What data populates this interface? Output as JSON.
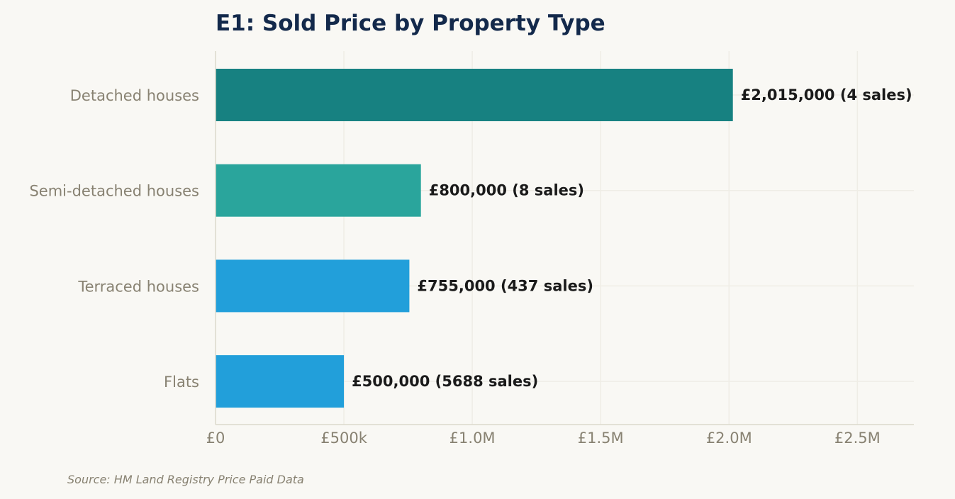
{
  "chart_data": {
    "type": "bar",
    "orientation": "horizontal",
    "title": "E1: Sold Price by Property Type",
    "xlabel": "",
    "ylabel": "",
    "categories": [
      "Detached houses",
      "Semi-detached houses",
      "Terraced houses",
      "Flats"
    ],
    "values": [
      2015000,
      800000,
      755000,
      500000
    ],
    "sales": [
      4,
      8,
      437,
      5688
    ],
    "value_labels": [
      "£2,015,000  (4 sales)",
      "£800,000  (8 sales)",
      "£755,000  (437 sales)",
      "£500,000  (5688 sales)"
    ],
    "bar_colors": [
      "#178181",
      "#2aa59c",
      "#229fda",
      "#229fda"
    ],
    "xlim": [
      0,
      2720000
    ],
    "xticks": [
      0,
      500000,
      1000000,
      1500000,
      2000000,
      2500000
    ],
    "xtick_labels": [
      "£0",
      "£500k",
      "£1.0M",
      "£1.5M",
      "£2.0M",
      "£2.5M"
    ],
    "grid": true,
    "legend": "none",
    "source": "Source: HM Land Registry Price Paid Data"
  },
  "colors": {
    "background": "#f9f8f4",
    "title": "#13294b",
    "muted_text": "#888272",
    "value_text": "#1a1a1a",
    "axis": "#dcd9cc",
    "grid": "#efede6"
  }
}
